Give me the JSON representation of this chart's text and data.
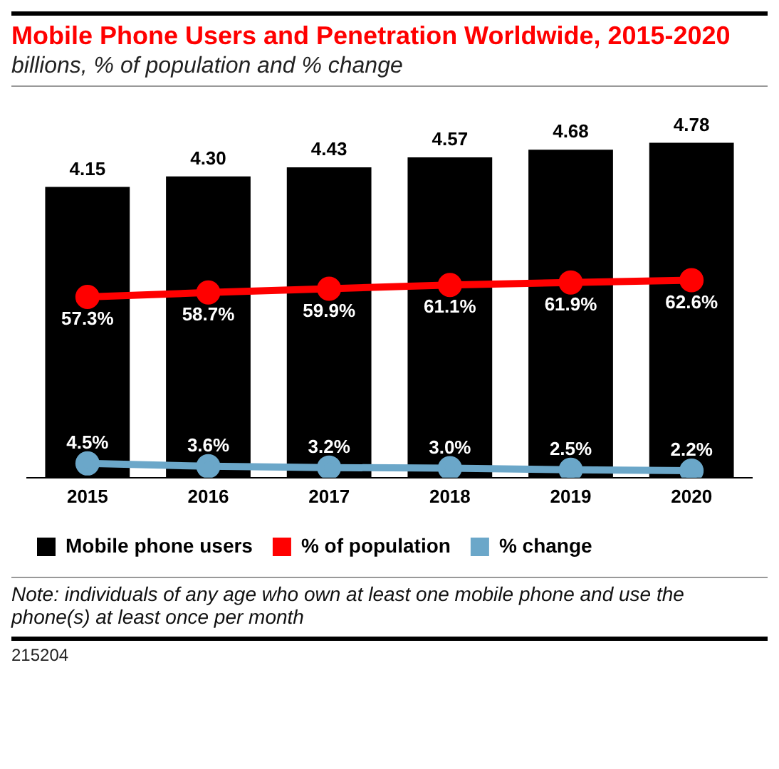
{
  "chart_data": {
    "type": "bar",
    "title": "Mobile Phone Users and Penetration Worldwide, 2015-2020",
    "subtitle": "billions, % of population and % change",
    "categories": [
      "2015",
      "2016",
      "2017",
      "2018",
      "2019",
      "2020"
    ],
    "series": [
      {
        "name": "Mobile phone users",
        "color": "#000000",
        "values": [
          4.15,
          4.3,
          4.43,
          4.57,
          4.68,
          4.78
        ],
        "value_labels": [
          "4.15",
          "4.30",
          "4.43",
          "4.57",
          "4.68",
          "4.78"
        ]
      },
      {
        "name": "% of population",
        "type": "line",
        "axis": "y2",
        "color": "#ff0000",
        "values": [
          57.3,
          58.7,
          59.9,
          61.1,
          61.9,
          62.6
        ],
        "value_labels": [
          "57.3%",
          "58.7%",
          "59.9%",
          "61.1%",
          "61.9%",
          "62.6%"
        ]
      },
      {
        "name": "% change",
        "type": "line",
        "axis": "y2",
        "color": "#6ba7c9",
        "values": [
          4.5,
          3.6,
          3.2,
          3.0,
          2.5,
          2.2
        ],
        "value_labels": [
          "4.5%",
          "3.6%",
          "3.2%",
          "3.0%",
          "2.5%",
          "2.2%"
        ]
      }
    ],
    "marker": "circle",
    "grid": false,
    "legend": "bottom",
    "tick_labels": "x",
    "annotations": [
      "Note: individuals of any age who own at least one mobile phone and use the phone(s) at least once per month",
      "215204"
    ]
  }
}
